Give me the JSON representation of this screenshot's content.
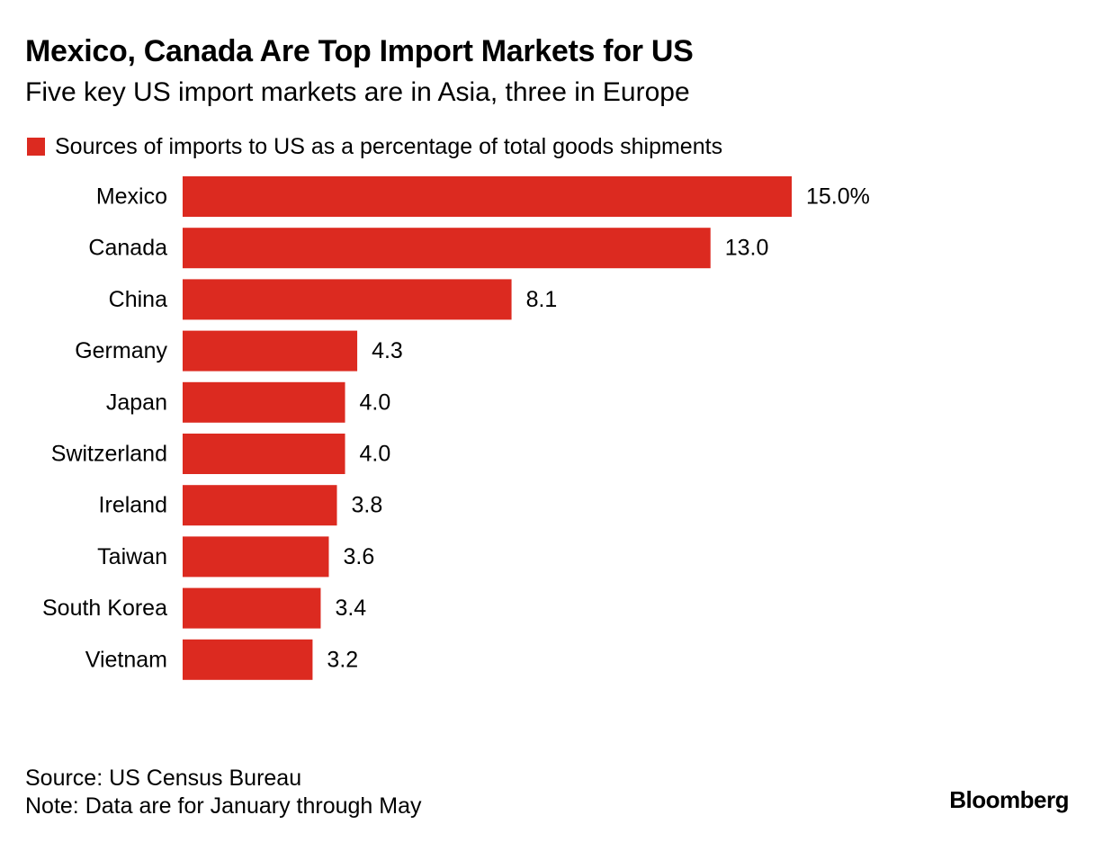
{
  "header": {
    "title": "Mexico, Canada Are Top Import Markets for US",
    "subtitle": "Five key US import markets are in Asia, three in Europe"
  },
  "legend": {
    "label": "Sources of imports to US as a percentage of total goods shipments",
    "color": "#dc2a20"
  },
  "chart_data": {
    "type": "bar",
    "orientation": "horizontal",
    "categories": [
      "Mexico",
      "Canada",
      "China",
      "Germany",
      "Japan",
      "Switzerland",
      "Ireland",
      "Taiwan",
      "South Korea",
      "Vietnam"
    ],
    "series": [
      {
        "name": "Sources of imports to US as a percentage of total goods shipments",
        "values": [
          15.0,
          13.0,
          8.1,
          4.3,
          4.0,
          4.0,
          3.8,
          3.6,
          3.4,
          3.2
        ]
      }
    ],
    "value_labels": [
      "15.0%",
      "13.0",
      "8.1",
      "4.3",
      "4.0",
      "4.0",
      "3.8",
      "3.6",
      "3.4",
      "3.2"
    ],
    "xlim": [
      0,
      15.0
    ],
    "grid": false,
    "legend_position": "top-left",
    "bar_color": "#dc2a20"
  },
  "footer": {
    "source": "Source: US Census Bureau",
    "note": "Note: Data are for January through May",
    "brand": "Bloomberg"
  }
}
